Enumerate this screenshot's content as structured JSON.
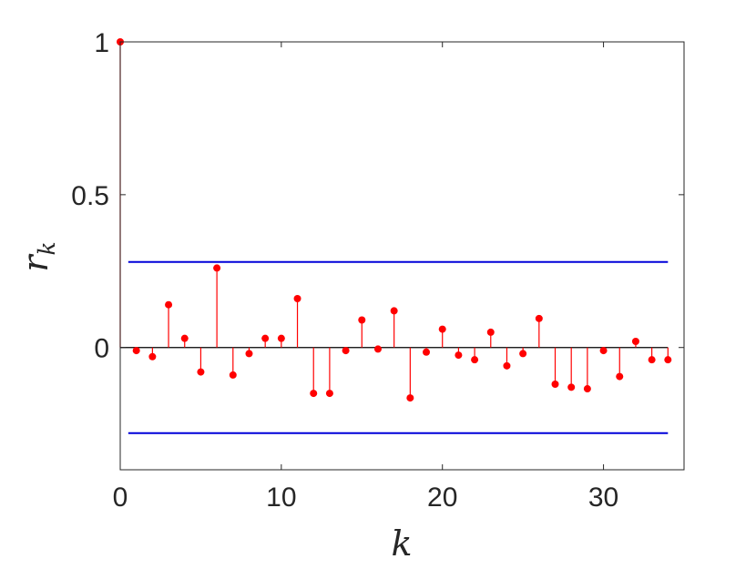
{
  "chart_data": {
    "type": "stem",
    "xlabel": "k",
    "ylabel_main": "r",
    "ylabel_sub": "k",
    "xlim": [
      0,
      35
    ],
    "ylim": [
      -0.4,
      1.0
    ],
    "xticks": [
      0,
      10,
      20,
      30
    ],
    "yticks": [
      0,
      0.5,
      1
    ],
    "ytick_labels": [
      "0",
      "0.5",
      "1"
    ],
    "grid": false,
    "lags": [
      0,
      1,
      2,
      3,
      4,
      5,
      6,
      7,
      8,
      9,
      10,
      11,
      12,
      13,
      14,
      15,
      16,
      17,
      18,
      19,
      20,
      21,
      22,
      23,
      24,
      25,
      26,
      27,
      28,
      29,
      30,
      31,
      32,
      33,
      34
    ],
    "values": [
      1.0,
      -0.01,
      -0.03,
      0.14,
      0.03,
      -0.08,
      0.26,
      -0.09,
      -0.02,
      0.03,
      0.03,
      0.16,
      -0.15,
      -0.15,
      -0.01,
      0.09,
      -0.005,
      0.12,
      -0.165,
      -0.015,
      0.06,
      -0.025,
      -0.04,
      0.05,
      -0.06,
      -0.02,
      0.095,
      -0.12,
      -0.13,
      -0.135,
      -0.01,
      -0.095,
      0.02,
      -0.04,
      -0.04
    ],
    "confidence_bounds": [
      0.28,
      -0.28
    ],
    "colors": {
      "stem": "#ff0000",
      "bounds": "#0000d9",
      "zero_line": "#000000",
      "axes": "#262626"
    }
  }
}
